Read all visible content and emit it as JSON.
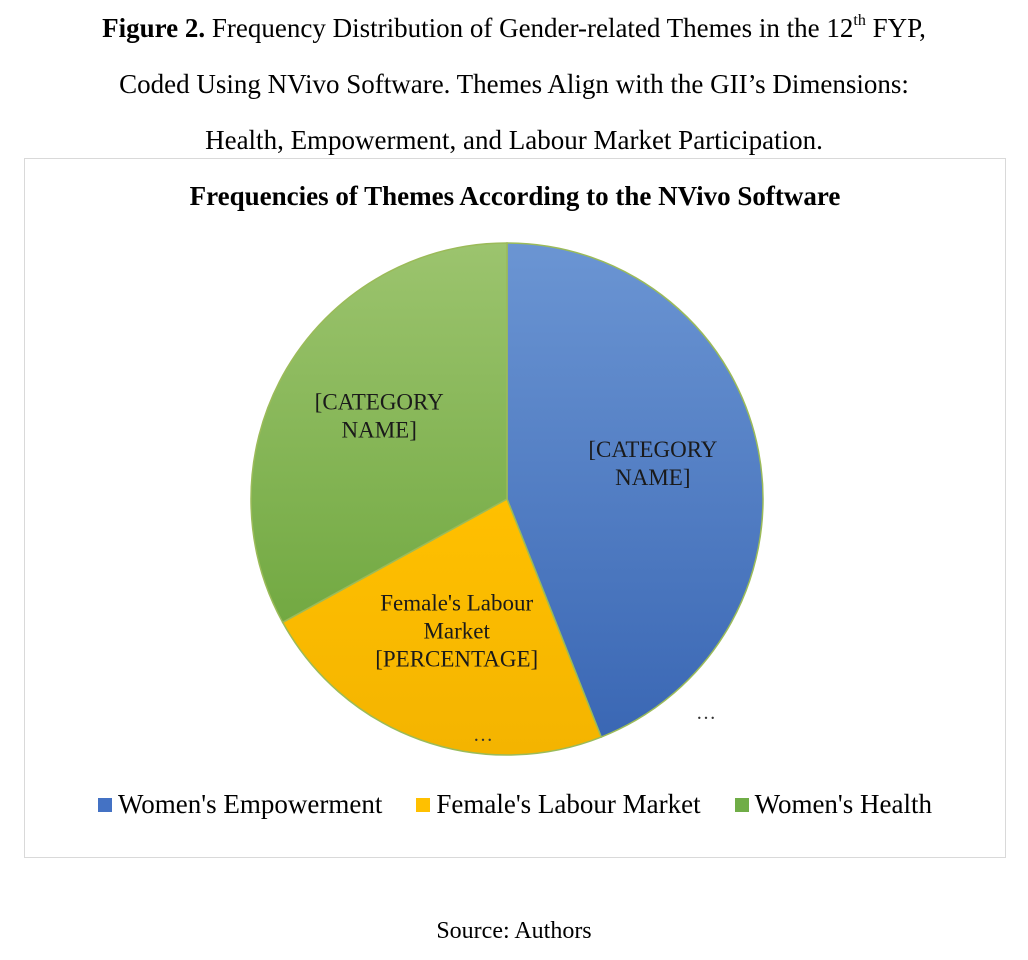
{
  "figure": {
    "label": "Figure 2.",
    "caption_line1_a": " Frequency Distribution of Gender-related Themes in the 12",
    "caption_sup": "th",
    "caption_line1_b": " FYP,",
    "caption_line2": "Coded Using NVivo Software. Themes Align with the GII’s Dimensions:",
    "caption_line3": "Health, Empowerment, and Labour Market Participation."
  },
  "source": "Source: Authors",
  "chart_data": {
    "type": "pie",
    "title": "Frequencies of Themes According to the NVivo Software",
    "legend_position": "bottom",
    "slices": [
      {
        "name": "Women's Empowerment",
        "value": 44,
        "color": "#4472c4",
        "label_lines": [
          "[CATEGORY",
          "NAME]"
        ],
        "sub_label": "…"
      },
      {
        "name": "Female's Labour Market",
        "value": 23,
        "color": "#ffc000",
        "label_lines": [
          "Female's Labour",
          "Market",
          "[PERCENTAGE]"
        ],
        "sub_label": "…"
      },
      {
        "name": "Women's Health",
        "value": 33,
        "color": "#70ad47",
        "label_lines": [
          "[CATEGORY",
          "NAME]"
        ],
        "sub_label": ""
      }
    ]
  }
}
